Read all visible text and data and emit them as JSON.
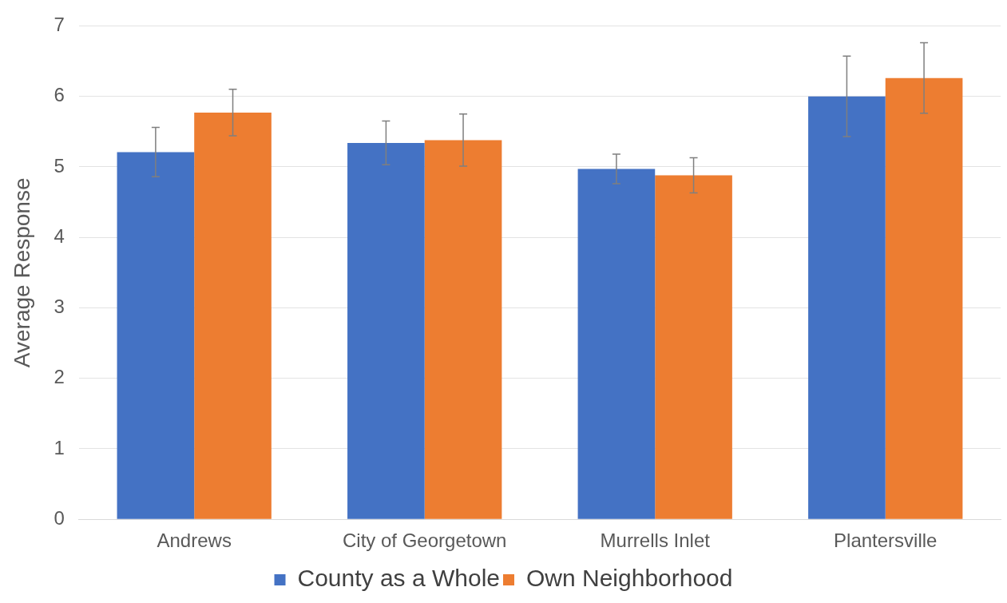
{
  "chart_data": {
    "type": "bar",
    "ylabel": "Average Response",
    "categories": [
      "Andrews",
      "City of Georgetown",
      "Murrells Inlet",
      "Plantersville"
    ],
    "series": [
      {
        "name": "County as a Whole",
        "color": "#4472c4",
        "values": [
          5.21,
          5.34,
          4.97,
          6.0
        ],
        "errors": [
          0.35,
          0.31,
          0.21,
          0.57
        ]
      },
      {
        "name": "Own Neighborhood",
        "color": "#ed7d31",
        "values": [
          5.77,
          5.38,
          4.88,
          6.26
        ],
        "errors": [
          0.33,
          0.37,
          0.25,
          0.5
        ]
      }
    ],
    "ylim": [
      0,
      7
    ],
    "yticks": [
      0,
      1,
      2,
      3,
      4,
      5,
      6,
      7
    ],
    "grid": "y",
    "legend": "bottom"
  }
}
